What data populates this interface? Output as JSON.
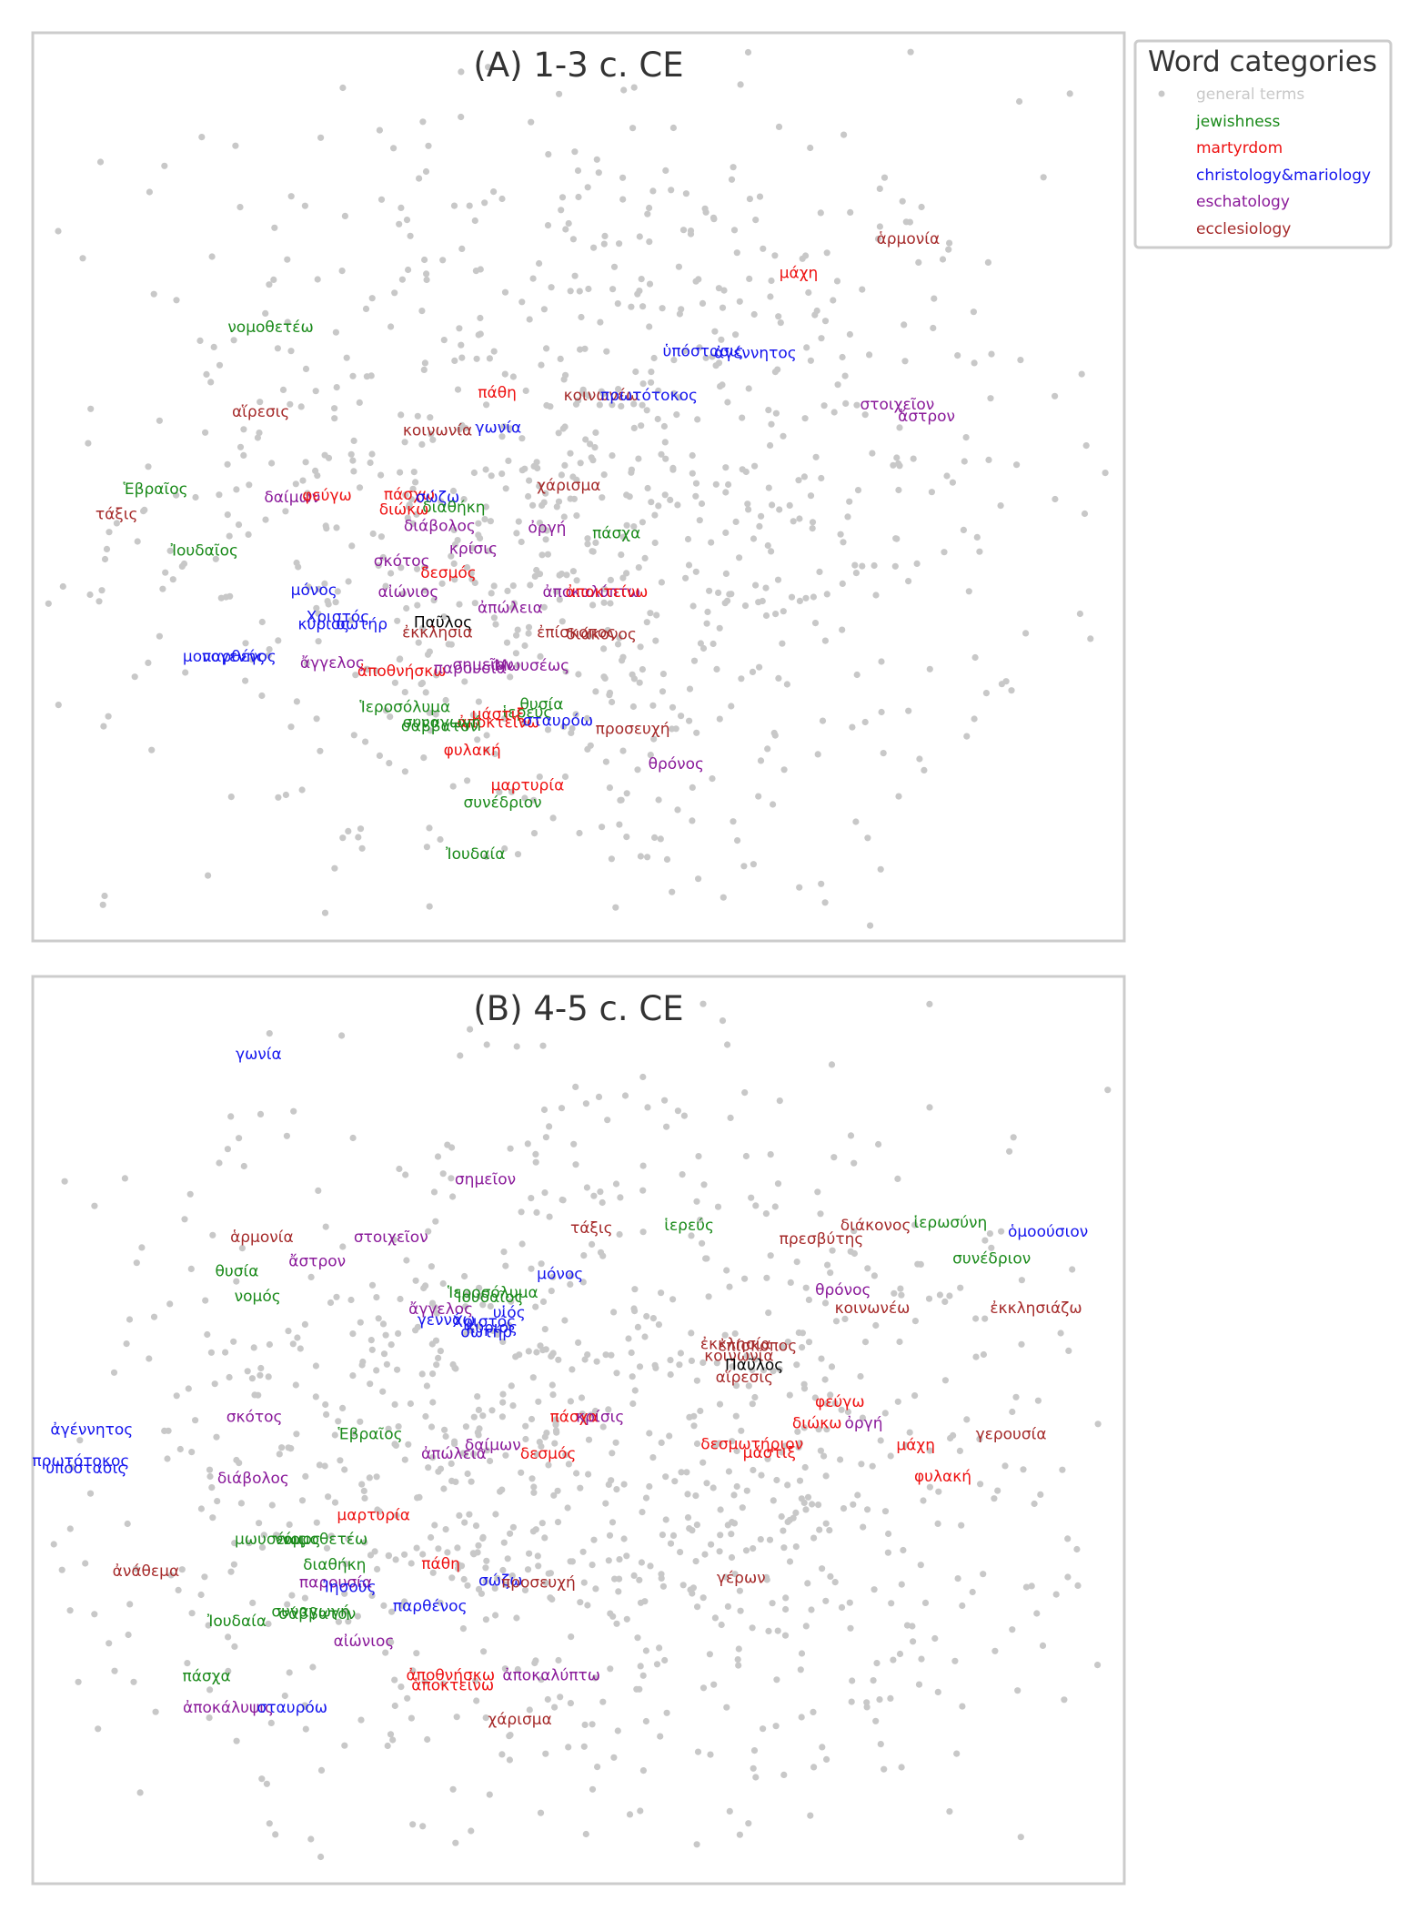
{
  "legend": {
    "title": "Word categories",
    "entries": [
      {
        "key": "general",
        "label": "general terms",
        "color": "#c8c8c8"
      },
      {
        "key": "jewishness",
        "label": "jewishness",
        "color": "#1a8a1a"
      },
      {
        "key": "martyrdom",
        "label": "martyrdom",
        "color": "#ee1111"
      },
      {
        "key": "christology",
        "label": "christology&mariology",
        "color": "#1515ee"
      },
      {
        "key": "eschatology",
        "label": "eschatology",
        "color": "#8a1a9a"
      },
      {
        "key": "ecclesiology",
        "label": "ecclesiology",
        "color": "#a52a2a"
      },
      {
        "key": "other",
        "label": "",
        "color": "#000000"
      }
    ]
  },
  "chart_data": [
    {
      "type": "scatter",
      "title": "(A) 1-3 c. CE",
      "xlim": [
        0,
        100
      ],
      "ylim": [
        0,
        100
      ],
      "grid": false,
      "legend_position": "outside-top-right",
      "background_points": {
        "category": "general",
        "count": 900,
        "center": [
          50,
          48
        ],
        "spread": [
          21,
          23
        ]
      },
      "labeled_points": [
        {
          "word": "ἁρμονία",
          "cat": "ecclesiology",
          "x": 80.4,
          "y": 77.5
        },
        {
          "word": "μάχη",
          "cat": "martyrdom",
          "x": 70.3,
          "y": 73.7
        },
        {
          "word": "νομοθετέω",
          "cat": "jewishness",
          "x": 21.6,
          "y": 67.7
        },
        {
          "word": "ὑπόστασις",
          "cat": "christology",
          "x": 61.5,
          "y": 65.0
        },
        {
          "word": "ἀγέννητος",
          "cat": "christology",
          "x": 66.3,
          "y": 64.8
        },
        {
          "word": "πάθη",
          "cat": "martyrdom",
          "x": 42.5,
          "y": 60.4
        },
        {
          "word": "κοινωνέω",
          "cat": "ecclesiology",
          "x": 52.1,
          "y": 60.1
        },
        {
          "word": "πρωτότοκος",
          "cat": "christology",
          "x": 56.5,
          "y": 60.1
        },
        {
          "word": "στοιχεῖον",
          "cat": "eschatology",
          "x": 79.4,
          "y": 59.1
        },
        {
          "word": "ἄστρον",
          "cat": "eschatology",
          "x": 82.1,
          "y": 57.8
        },
        {
          "word": "αἵρεσις",
          "cat": "ecclesiology",
          "x": 20.7,
          "y": 58.3
        },
        {
          "word": "κοινωνία",
          "cat": "ecclesiology",
          "x": 37.0,
          "y": 56.2
        },
        {
          "word": "γωνία",
          "cat": "christology",
          "x": 42.6,
          "y": 56.5
        },
        {
          "word": "Ἑβραῖος",
          "cat": "jewishness",
          "x": 11.0,
          "y": 49.7
        },
        {
          "word": "χάρισμα",
          "cat": "ecclesiology",
          "x": 49.1,
          "y": 50.1
        },
        {
          "word": "δαίμων",
          "cat": "eschatology",
          "x": 23.6,
          "y": 48.8
        },
        {
          "word": "φεύγω",
          "cat": "martyrdom",
          "x": 26.8,
          "y": 49.0
        },
        {
          "word": "πάσχω",
          "cat": "martyrdom",
          "x": 34.4,
          "y": 49.1
        },
        {
          "word": "σώζω",
          "cat": "christology",
          "x": 37.0,
          "y": 48.8
        },
        {
          "word": "διαθήκη",
          "cat": "jewishness",
          "x": 38.5,
          "y": 47.7
        },
        {
          "word": "διώκω",
          "cat": "martyrdom",
          "x": 33.9,
          "y": 47.4
        },
        {
          "word": "τάξις",
          "cat": "ecclesiology",
          "x": 7.4,
          "y": 46.9
        },
        {
          "word": "διάβολος",
          "cat": "eschatology",
          "x": 37.2,
          "y": 45.6
        },
        {
          "word": "ὀργή",
          "cat": "eschatology",
          "x": 47.1,
          "y": 45.4
        },
        {
          "word": "πάσχα",
          "cat": "jewishness",
          "x": 53.5,
          "y": 44.8
        },
        {
          "word": "Ἰουδαῖος",
          "cat": "jewishness",
          "x": 15.5,
          "y": 42.9
        },
        {
          "word": "κρίσις",
          "cat": "eschatology",
          "x": 40.3,
          "y": 43.1
        },
        {
          "word": "σκότος",
          "cat": "eschatology",
          "x": 33.7,
          "y": 41.7
        },
        {
          "word": "δεσμός",
          "cat": "martyrdom",
          "x": 38.0,
          "y": 40.4
        },
        {
          "word": "μόνος",
          "cat": "christology",
          "x": 25.6,
          "y": 38.5
        },
        {
          "word": "αἰώνιος",
          "cat": "eschatology",
          "x": 34.3,
          "y": 38.3
        },
        {
          "word": "ἀποκαλύπτω",
          "cat": "eschatology",
          "x": 51.2,
          "y": 38.3
        },
        {
          "word": "ἀποκτείνω",
          "cat": "martyrdom",
          "x": 52.6,
          "y": 38.3
        },
        {
          "word": "ἀπώλεια",
          "cat": "eschatology",
          "x": 43.7,
          "y": 36.5
        },
        {
          "word": "Χριστός",
          "cat": "christology",
          "x": 27.8,
          "y": 35.5
        },
        {
          "word": "κύριος",
          "cat": "christology",
          "x": 26.5,
          "y": 34.7
        },
        {
          "word": "σωτήρ",
          "cat": "christology",
          "x": 30.0,
          "y": 34.7
        },
        {
          "word": "Παῦλος",
          "cat": "other",
          "x": 37.5,
          "y": 34.9
        },
        {
          "word": "ἐκκλησία",
          "cat": "ecclesiology",
          "x": 37.0,
          "y": 33.8
        },
        {
          "word": "ἐπίσκοπος",
          "cat": "ecclesiology",
          "x": 49.8,
          "y": 33.8
        },
        {
          "word": "διάκονος",
          "cat": "ecclesiology",
          "x": 52.1,
          "y": 33.6
        },
        {
          "word": "μονογενής",
          "cat": "christology",
          "x": 17.3,
          "y": 31.1
        },
        {
          "word": "παρθένος",
          "cat": "christology",
          "x": 18.7,
          "y": 31.1
        },
        {
          "word": "ἄγγελος",
          "cat": "eschatology",
          "x": 27.3,
          "y": 30.4
        },
        {
          "word": "ἀποθνήσκω",
          "cat": "martyrdom",
          "x": 33.7,
          "y": 29.5
        },
        {
          "word": "σημεῖον",
          "cat": "eschatology",
          "x": 41.2,
          "y": 30.2
        },
        {
          "word": "παρουσία",
          "cat": "eschatology",
          "x": 40.0,
          "y": 29.8
        },
        {
          "word": "Μωυσέως",
          "cat": "eschatology",
          "x": 45.7,
          "y": 30.1
        },
        {
          "word": "Ἱεροσόλυμα",
          "cat": "jewishness",
          "x": 34.0,
          "y": 25.5
        },
        {
          "word": "θυσία",
          "cat": "jewishness",
          "x": 46.6,
          "y": 25.8
        },
        {
          "word": "ἱερεύς",
          "cat": "jewishness",
          "x": 45.3,
          "y": 24.9
        },
        {
          "word": "μάστιξ",
          "cat": "martyrdom",
          "x": 42.6,
          "y": 24.7
        },
        {
          "word": "ἀποκτείνω",
          "cat": "martyrdom",
          "x": 42.6,
          "y": 23.8
        },
        {
          "word": "σταυρόω",
          "cat": "christology",
          "x": 48.1,
          "y": 24.0
        },
        {
          "word": "συναγωγή",
          "cat": "jewishness",
          "x": 37.4,
          "y": 23.8
        },
        {
          "word": "σάββατον",
          "cat": "jewishness",
          "x": 37.2,
          "y": 23.4
        },
        {
          "word": "προσευχή",
          "cat": "ecclesiology",
          "x": 55.0,
          "y": 23.1
        },
        {
          "word": "φυλακή",
          "cat": "martyrdom",
          "x": 40.2,
          "y": 20.7
        },
        {
          "word": "θρόνος",
          "cat": "eschatology",
          "x": 59.0,
          "y": 19.2
        },
        {
          "word": "μαρτυρία",
          "cat": "martyrdom",
          "x": 45.3,
          "y": 16.8
        },
        {
          "word": "συνέδριον",
          "cat": "jewishness",
          "x": 43.0,
          "y": 14.9
        },
        {
          "word": "Ἰουδαία",
          "cat": "jewishness",
          "x": 40.5,
          "y": 9.2
        }
      ]
    },
    {
      "type": "scatter",
      "title": "(B) 4-5 c. CE",
      "xlim": [
        0,
        100
      ],
      "ylim": [
        0,
        100
      ],
      "grid": false,
      "legend_position": "outside-top-right",
      "background_points": {
        "category": "general",
        "count": 1000,
        "center": [
          50,
          46
        ],
        "spread": [
          25,
          20
        ]
      },
      "labeled_points": [
        {
          "word": "γωνία",
          "cat": "christology",
          "x": 20.5,
          "y": 91.7
        },
        {
          "word": "σημεῖον",
          "cat": "eschatology",
          "x": 41.4,
          "y": 77.8
        },
        {
          "word": "ἁρμονία",
          "cat": "ecclesiology",
          "x": 20.8,
          "y": 71.4
        },
        {
          "word": "στοιχεῖον",
          "cat": "eschatology",
          "x": 32.7,
          "y": 71.4
        },
        {
          "word": "τάξις",
          "cat": "ecclesiology",
          "x": 51.2,
          "y": 72.4
        },
        {
          "word": "ἱερεύς",
          "cat": "jewishness",
          "x": 60.2,
          "y": 72.7
        },
        {
          "word": "πρεσβύτης",
          "cat": "ecclesiology",
          "x": 72.4,
          "y": 71.2
        },
        {
          "word": "διάκονος",
          "cat": "ecclesiology",
          "x": 77.4,
          "y": 72.7
        },
        {
          "word": "ἱερωσύνη",
          "cat": "jewishness",
          "x": 84.3,
          "y": 73.0
        },
        {
          "word": "ὁμοούσιον",
          "cat": "christology",
          "x": 93.3,
          "y": 72.0
        },
        {
          "word": "συνέδριον",
          "cat": "jewishness",
          "x": 88.1,
          "y": 69.0
        },
        {
          "word": "ἄστρον",
          "cat": "eschatology",
          "x": 25.9,
          "y": 68.7
        },
        {
          "word": "θυσία",
          "cat": "jewishness",
          "x": 18.5,
          "y": 67.6
        },
        {
          "word": "νομός",
          "cat": "jewishness",
          "x": 20.4,
          "y": 64.8
        },
        {
          "word": "Ἱεροσόλυμα",
          "cat": "jewishness",
          "x": 42.1,
          "y": 65.2
        },
        {
          "word": "μόνος",
          "cat": "christology",
          "x": 48.3,
          "y": 67.3
        },
        {
          "word": "Ἰουδαῖος",
          "cat": "jewishness",
          "x": 41.8,
          "y": 64.7
        },
        {
          "word": "θρόνος",
          "cat": "eschatology",
          "x": 74.4,
          "y": 65.5
        },
        {
          "word": "κοινωνέω",
          "cat": "ecclesiology",
          "x": 77.1,
          "y": 63.5
        },
        {
          "word": "ἐκκλησιάζω",
          "cat": "ecclesiology",
          "x": 92.2,
          "y": 63.5
        },
        {
          "word": "ἄγγελος",
          "cat": "eschatology",
          "x": 37.3,
          "y": 63.4
        },
        {
          "word": "υἱός",
          "cat": "christology",
          "x": 43.6,
          "y": 63.0
        },
        {
          "word": "γεννάω",
          "cat": "christology",
          "x": 37.8,
          "y": 62.2
        },
        {
          "word": "Χριστός",
          "cat": "christology",
          "x": 41.3,
          "y": 62.0
        },
        {
          "word": "κύριος",
          "cat": "christology",
          "x": 42.0,
          "y": 61.3
        },
        {
          "word": "σωτήρ",
          "cat": "christology",
          "x": 41.5,
          "y": 60.8
        },
        {
          "word": "ἐκκλησία",
          "cat": "ecclesiology",
          "x": 64.5,
          "y": 59.5
        },
        {
          "word": "ἐπίσκοπος",
          "cat": "ecclesiology",
          "x": 66.5,
          "y": 59.3
        },
        {
          "word": "κοινωνία",
          "cat": "ecclesiology",
          "x": 64.8,
          "y": 58.2
        },
        {
          "word": "Παῦλος",
          "cat": "other",
          "x": 66.2,
          "y": 57.2
        },
        {
          "word": "αἵρεσις",
          "cat": "ecclesiology",
          "x": 65.3,
          "y": 55.8
        },
        {
          "word": "φεύγω",
          "cat": "martyrdom",
          "x": 74.1,
          "y": 53.1
        },
        {
          "word": "ἀγέννητος",
          "cat": "christology",
          "x": 5.1,
          "y": 50.0
        },
        {
          "word": "σκότος",
          "cat": "eschatology",
          "x": 20.1,
          "y": 51.4
        },
        {
          "word": "Ἑβραῖος",
          "cat": "jewishness",
          "x": 30.8,
          "y": 49.5
        },
        {
          "word": "πάσχα",
          "cat": "martyrdom",
          "x": 49.6,
          "y": 51.4
        },
        {
          "word": "κρίσις",
          "cat": "eschatology",
          "x": 52.0,
          "y": 51.4
        },
        {
          "word": "διώκω",
          "cat": "martyrdom",
          "x": 72.0,
          "y": 50.7
        },
        {
          "word": "ὀργή",
          "cat": "eschatology",
          "x": 76.3,
          "y": 50.7
        },
        {
          "word": "γερουσία",
          "cat": "ecclesiology",
          "x": 89.9,
          "y": 49.5
        },
        {
          "word": "δαίμων",
          "cat": "eschatology",
          "x": 42.1,
          "y": 48.3
        },
        {
          "word": "ἀπώλεια",
          "cat": "eschatology",
          "x": 38.5,
          "y": 47.3
        },
        {
          "word": "δεσμός",
          "cat": "martyrdom",
          "x": 47.2,
          "y": 47.3
        },
        {
          "word": "δεσμωτήριον",
          "cat": "martyrdom",
          "x": 66.0,
          "y": 48.4
        },
        {
          "word": "μάστιξ",
          "cat": "martyrdom",
          "x": 67.6,
          "y": 47.4
        },
        {
          "word": "μάχη",
          "cat": "martyrdom",
          "x": 81.1,
          "y": 48.3
        },
        {
          "word": "πρωτότοκος",
          "cat": "christology",
          "x": 4.1,
          "y": 46.5
        },
        {
          "word": "ὑπόστασις",
          "cat": "christology",
          "x": 4.6,
          "y": 45.7
        },
        {
          "word": "διάβολος",
          "cat": "eschatology",
          "x": 20.0,
          "y": 44.6
        },
        {
          "word": "φυλακή",
          "cat": "martyrdom",
          "x": 83.6,
          "y": 44.8
        },
        {
          "word": "μαρτυρία",
          "cat": "martyrdom",
          "x": 31.1,
          "y": 40.5
        },
        {
          "word": "μωυσέως",
          "cat": "jewishness",
          "x": 21.6,
          "y": 37.8
        },
        {
          "word": "νόμος",
          "cat": "jewishness",
          "x": 24.1,
          "y": 37.8
        },
        {
          "word": "νομοθετέω",
          "cat": "jewishness",
          "x": 26.6,
          "y": 37.8
        },
        {
          "word": "διαθήκη",
          "cat": "jewishness",
          "x": 27.5,
          "y": 35.0
        },
        {
          "word": "πάθη",
          "cat": "martyrdom",
          "x": 37.3,
          "y": 35.1
        },
        {
          "word": "σώζω",
          "cat": "christology",
          "x": 42.8,
          "y": 33.2
        },
        {
          "word": "προσευχή",
          "cat": "ecclesiology",
          "x": 46.3,
          "y": 33.0
        },
        {
          "word": "γέρων",
          "cat": "ecclesiology",
          "x": 65.0,
          "y": 33.5
        },
        {
          "word": "παρουσία",
          "cat": "eschatology",
          "x": 27.6,
          "y": 33.0
        },
        {
          "word": "Ἰησοῦς",
          "cat": "christology",
          "x": 28.9,
          "y": 32.5
        },
        {
          "word": "ἀνάθεμα",
          "cat": "ecclesiology",
          "x": 10.1,
          "y": 34.3
        },
        {
          "word": "παρθένος",
          "cat": "christology",
          "x": 36.3,
          "y": 30.4
        },
        {
          "word": "συναγωγή",
          "cat": "jewishness",
          "x": 25.3,
          "y": 29.8
        },
        {
          "word": "σάββατον",
          "cat": "jewishness",
          "x": 25.9,
          "y": 29.5
        },
        {
          "word": "Ἰουδαία",
          "cat": "jewishness",
          "x": 18.5,
          "y": 28.7
        },
        {
          "word": "αἰώνιος",
          "cat": "eschatology",
          "x": 30.2,
          "y": 26.5
        },
        {
          "word": "πάσχα",
          "cat": "jewishness",
          "x": 15.7,
          "y": 22.6
        },
        {
          "word": "ἀποθνήσκω",
          "cat": "martyrdom",
          "x": 38.2,
          "y": 22.7
        },
        {
          "word": "ἀποκαλύπτω",
          "cat": "eschatology",
          "x": 47.5,
          "y": 22.7
        },
        {
          "word": "ἀποκτείνω",
          "cat": "martyrdom",
          "x": 38.4,
          "y": 21.6
        },
        {
          "word": "ἀποκάλυψις",
          "cat": "eschatology",
          "x": 17.7,
          "y": 19.1
        },
        {
          "word": "σταυρόω",
          "cat": "christology",
          "x": 23.6,
          "y": 19.1
        },
        {
          "word": "χάρισμα",
          "cat": "ecclesiology",
          "x": 44.6,
          "y": 17.8
        }
      ]
    }
  ]
}
